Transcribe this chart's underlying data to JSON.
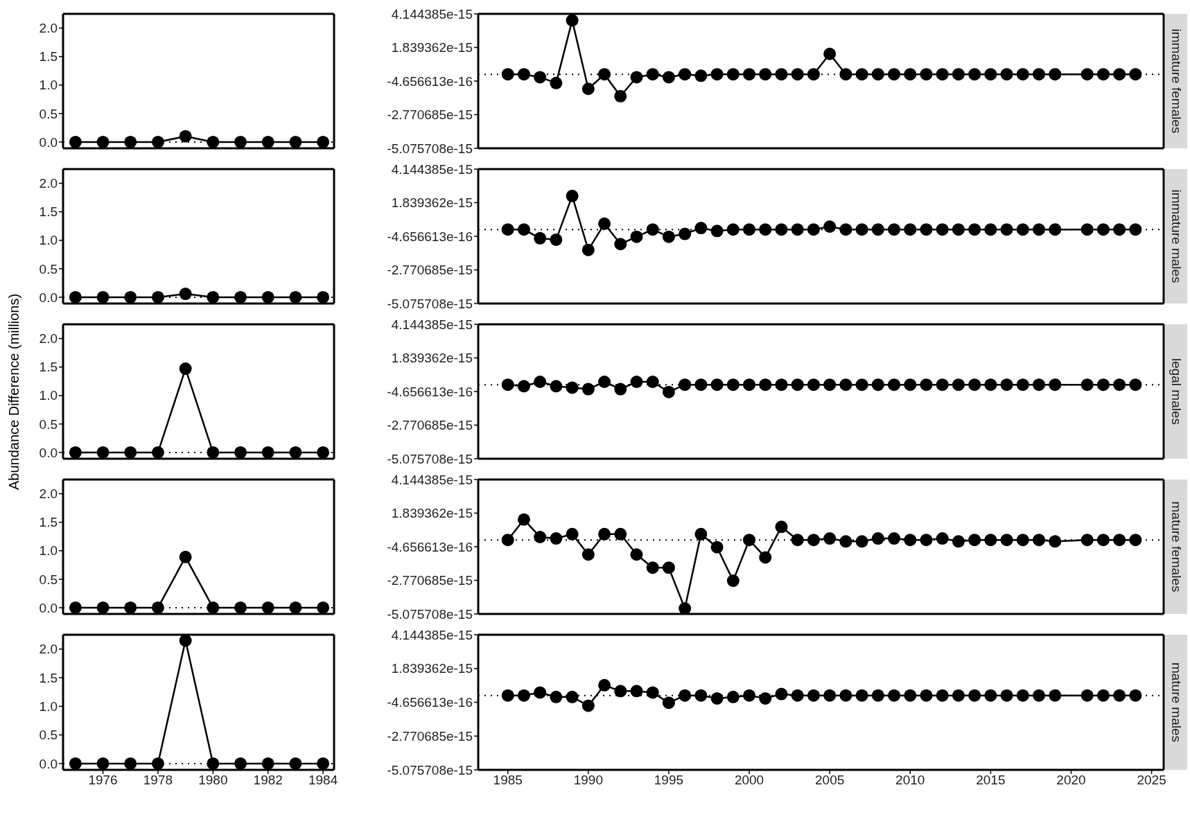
{
  "chart_data": [
    {
      "type": "line",
      "x": [
        1975,
        1976,
        1977,
        1978,
        1979,
        1980,
        1981,
        1982,
        1983,
        1984
      ],
      "values": [
        0,
        0,
        0,
        0,
        0.1,
        0,
        0,
        0,
        0,
        0
      ],
      "color": "#000000",
      "marker": "circle",
      "line_style": "solid",
      "xlim": [
        1974.55,
        1984.4
      ],
      "xticks": [
        1976,
        1978,
        1980,
        1982,
        1984
      ],
      "ylim": [
        -0.11,
        2.25
      ],
      "yticks": [
        {
          "value": 0,
          "label": "0.0"
        },
        {
          "value": 0.5,
          "label": "0.5"
        },
        {
          "value": 1,
          "label": "1.0"
        },
        {
          "value": 1.5,
          "label": "1.5"
        },
        {
          "value": 2,
          "label": "2.0"
        }
      ],
      "ref_lines": [
        {
          "axis": "y",
          "value": 0,
          "line_style": "dotted",
          "color": "#000000"
        }
      ],
      "tick_labels": "y"
    },
    {
      "type": "line",
      "title": "immature females",
      "x": [
        1985,
        1986,
        1987,
        1988,
        1989,
        1990,
        1991,
        1992,
        1993,
        1994,
        1995,
        1996,
        1997,
        1998,
        1999,
        2000,
        2001,
        2002,
        2003,
        2004,
        2005,
        2006,
        2007,
        2008,
        2009,
        2010,
        2011,
        2012,
        2013,
        2014,
        2015,
        2016,
        2017,
        2018,
        2019,
        2021,
        2022,
        2023,
        2024
      ],
      "values": [
        0,
        0,
        -2e-16,
        -6e-16,
        3.7e-15,
        -1e-15,
        0,
        -1.5e-15,
        -2e-16,
        0,
        -2e-16,
        0,
        -1e-16,
        0,
        0,
        0,
        0,
        0,
        0,
        0,
        1.4e-15,
        0,
        0,
        0,
        0,
        0,
        0,
        0,
        0,
        0,
        0,
        0,
        0,
        0,
        0,
        0,
        0,
        0,
        0
      ],
      "color": "#000000",
      "marker": "circle",
      "line_style": "solid",
      "xlim": [
        1983.16,
        2025.75
      ],
      "xticks": [
        1985,
        1990,
        1995,
        2000,
        2005,
        2010,
        2015,
        2020,
        2025
      ],
      "ylim": [
        -5.075708e-15,
        4.144385e-15
      ],
      "yticks": [
        {
          "value": -5.075708e-15,
          "label": "-5.075708e-15"
        },
        {
          "value": -2.770685e-15,
          "label": "-2.770685e-15"
        },
        {
          "value": -4.656613e-16,
          "label": "-4.656613e-16"
        },
        {
          "value": 1.839362e-15,
          "label": "1.839362e-15"
        },
        {
          "value": 4.144385e-15,
          "label": "4.144385e-15"
        }
      ],
      "ref_lines": [
        {
          "axis": "y",
          "value": 0,
          "line_style": "dotted",
          "color": "#000000"
        }
      ],
      "tick_labels": "y"
    },
    {
      "type": "line",
      "x": [
        1975,
        1976,
        1977,
        1978,
        1979,
        1980,
        1981,
        1982,
        1983,
        1984
      ],
      "values": [
        0,
        0,
        0,
        0,
        0.06,
        0,
        0,
        0,
        0,
        0
      ],
      "color": "#000000",
      "marker": "circle",
      "line_style": "solid",
      "xlim": [
        1974.55,
        1984.4
      ],
      "xticks": [
        1976,
        1978,
        1980,
        1982,
        1984
      ],
      "ylim": [
        -0.11,
        2.25
      ],
      "yticks": [
        {
          "value": 0,
          "label": "0.0"
        },
        {
          "value": 0.5,
          "label": "0.5"
        },
        {
          "value": 1,
          "label": "1.0"
        },
        {
          "value": 1.5,
          "label": "1.5"
        },
        {
          "value": 2,
          "label": "2.0"
        }
      ],
      "ref_lines": [
        {
          "axis": "y",
          "value": 0,
          "line_style": "dotted",
          "color": "#000000"
        }
      ],
      "tick_labels": "y"
    },
    {
      "type": "line",
      "title": "immature males",
      "x": [
        1985,
        1986,
        1987,
        1988,
        1989,
        1990,
        1991,
        1992,
        1993,
        1994,
        1995,
        1996,
        1997,
        1998,
        1999,
        2000,
        2001,
        2002,
        2003,
        2004,
        2005,
        2006,
        2007,
        2008,
        2009,
        2010,
        2011,
        2012,
        2013,
        2014,
        2015,
        2016,
        2017,
        2018,
        2019,
        2021,
        2022,
        2023,
        2024
      ],
      "values": [
        0,
        0,
        -6e-16,
        -7e-16,
        2.3e-15,
        -1.4e-15,
        4e-16,
        -1e-15,
        -5e-16,
        0,
        -5e-16,
        -3e-16,
        1e-16,
        -1e-16,
        0,
        0,
        0,
        0,
        0,
        0,
        2e-16,
        0,
        0,
        0,
        0,
        0,
        0,
        0,
        0,
        0,
        0,
        0,
        0,
        0,
        0,
        0,
        0,
        0,
        0
      ],
      "color": "#000000",
      "marker": "circle",
      "line_style": "solid",
      "xlim": [
        1983.16,
        2025.75
      ],
      "xticks": [
        1985,
        1990,
        1995,
        2000,
        2005,
        2010,
        2015,
        2020,
        2025
      ],
      "ylim": [
        -5.075708e-15,
        4.144385e-15
      ],
      "yticks": [
        {
          "value": -5.075708e-15,
          "label": "-5.075708e-15"
        },
        {
          "value": -2.770685e-15,
          "label": "-2.770685e-15"
        },
        {
          "value": -4.656613e-16,
          "label": "-4.656613e-16"
        },
        {
          "value": 1.839362e-15,
          "label": "1.839362e-15"
        },
        {
          "value": 4.144385e-15,
          "label": "4.144385e-15"
        }
      ],
      "ref_lines": [
        {
          "axis": "y",
          "value": 0,
          "line_style": "dotted",
          "color": "#000000"
        }
      ],
      "tick_labels": "y"
    },
    {
      "type": "line",
      "ylabel": "Abundance Difference (millions)",
      "x": [
        1975,
        1976,
        1977,
        1978,
        1979,
        1980,
        1981,
        1982,
        1983,
        1984
      ],
      "values": [
        0,
        0,
        0,
        0,
        1.47,
        0,
        0,
        0,
        0,
        0
      ],
      "color": "#000000",
      "marker": "circle",
      "line_style": "solid",
      "xlim": [
        1974.55,
        1984.4
      ],
      "xticks": [
        1976,
        1978,
        1980,
        1982,
        1984
      ],
      "ylim": [
        -0.11,
        2.25
      ],
      "yticks": [
        {
          "value": 0,
          "label": "0.0"
        },
        {
          "value": 0.5,
          "label": "0.5"
        },
        {
          "value": 1,
          "label": "1.0"
        },
        {
          "value": 1.5,
          "label": "1.5"
        },
        {
          "value": 2,
          "label": "2.0"
        }
      ],
      "ref_lines": [
        {
          "axis": "y",
          "value": 0,
          "line_style": "dotted",
          "color": "#000000"
        }
      ],
      "tick_labels": "y"
    },
    {
      "type": "line",
      "title": "legal males",
      "x": [
        1985,
        1986,
        1987,
        1988,
        1989,
        1990,
        1991,
        1992,
        1993,
        1994,
        1995,
        1996,
        1997,
        1998,
        1999,
        2000,
        2001,
        2002,
        2003,
        2004,
        2005,
        2006,
        2007,
        2008,
        2009,
        2010,
        2011,
        2012,
        2013,
        2014,
        2015,
        2016,
        2017,
        2018,
        2019,
        2021,
        2022,
        2023,
        2024
      ],
      "values": [
        0,
        -1e-16,
        2e-16,
        -1e-16,
        -2e-16,
        -3e-16,
        2e-16,
        -3e-16,
        2e-16,
        2e-16,
        -5e-16,
        0,
        0,
        0,
        0,
        0,
        0,
        0,
        0,
        0,
        0,
        0,
        0,
        0,
        0,
        0,
        0,
        0,
        0,
        0,
        0,
        0,
        0,
        0,
        0,
        0,
        0,
        0,
        0
      ],
      "color": "#000000",
      "marker": "circle",
      "line_style": "solid",
      "xlim": [
        1983.16,
        2025.75
      ],
      "xticks": [
        1985,
        1990,
        1995,
        2000,
        2005,
        2010,
        2015,
        2020,
        2025
      ],
      "ylim": [
        -5.075708e-15,
        4.144385e-15
      ],
      "yticks": [
        {
          "value": -5.075708e-15,
          "label": "-5.075708e-15"
        },
        {
          "value": -2.770685e-15,
          "label": "-2.770685e-15"
        },
        {
          "value": -4.656613e-16,
          "label": "-4.656613e-16"
        },
        {
          "value": 1.839362e-15,
          "label": "1.839362e-15"
        },
        {
          "value": 4.144385e-15,
          "label": "4.144385e-15"
        }
      ],
      "ref_lines": [
        {
          "axis": "y",
          "value": 0,
          "line_style": "dotted",
          "color": "#000000"
        }
      ],
      "tick_labels": "y"
    },
    {
      "type": "line",
      "x": [
        1975,
        1976,
        1977,
        1978,
        1979,
        1980,
        1981,
        1982,
        1983,
        1984
      ],
      "values": [
        0,
        0,
        0,
        0,
        0.89,
        0,
        0,
        0,
        0,
        0
      ],
      "color": "#000000",
      "marker": "circle",
      "line_style": "solid",
      "xlim": [
        1974.55,
        1984.4
      ],
      "xticks": [
        1976,
        1978,
        1980,
        1982,
        1984
      ],
      "ylim": [
        -0.11,
        2.25
      ],
      "yticks": [
        {
          "value": 0,
          "label": "0.0"
        },
        {
          "value": 0.5,
          "label": "0.5"
        },
        {
          "value": 1,
          "label": "1.0"
        },
        {
          "value": 1.5,
          "label": "1.5"
        },
        {
          "value": 2,
          "label": "2.0"
        }
      ],
      "ref_lines": [
        {
          "axis": "y",
          "value": 0,
          "line_style": "dotted",
          "color": "#000000"
        }
      ],
      "tick_labels": "y"
    },
    {
      "type": "line",
      "title": "mature females",
      "x": [
        1985,
        1986,
        1987,
        1988,
        1989,
        1990,
        1991,
        1992,
        1993,
        1994,
        1995,
        1996,
        1997,
        1998,
        1999,
        2000,
        2001,
        2002,
        2003,
        2004,
        2005,
        2006,
        2007,
        2008,
        2009,
        2010,
        2011,
        2012,
        2013,
        2014,
        2015,
        2016,
        2017,
        2018,
        2019,
        2021,
        2022,
        2023,
        2024
      ],
      "values": [
        0,
        1.4e-15,
        2e-16,
        1e-16,
        4e-16,
        -1e-15,
        4e-16,
        4e-16,
        -1e-15,
        -1.9e-15,
        -1.9e-15,
        -4.7e-15,
        4e-16,
        -5e-16,
        -2.8e-15,
        0,
        -1.2e-15,
        9e-16,
        0,
        0,
        1e-16,
        -1e-16,
        -1e-16,
        1e-16,
        1e-16,
        0,
        0,
        1e-16,
        -1e-16,
        0,
        0,
        0,
        0,
        0,
        -1e-16,
        0,
        0,
        0,
        0
      ],
      "color": "#000000",
      "marker": "circle",
      "line_style": "solid",
      "xlim": [
        1983.16,
        2025.75
      ],
      "xticks": [
        1985,
        1990,
        1995,
        2000,
        2005,
        2010,
        2015,
        2020,
        2025
      ],
      "ylim": [
        -5.075708e-15,
        4.144385e-15
      ],
      "yticks": [
        {
          "value": -5.075708e-15,
          "label": "-5.075708e-15"
        },
        {
          "value": -2.770685e-15,
          "label": "-2.770685e-15"
        },
        {
          "value": -4.656613e-16,
          "label": "-4.656613e-16"
        },
        {
          "value": 1.839362e-15,
          "label": "1.839362e-15"
        },
        {
          "value": 4.144385e-15,
          "label": "4.144385e-15"
        }
      ],
      "ref_lines": [
        {
          "axis": "y",
          "value": 0,
          "line_style": "dotted",
          "color": "#000000"
        }
      ],
      "tick_labels": "y"
    },
    {
      "type": "line",
      "x": [
        1975,
        1976,
        1977,
        1978,
        1979,
        1980,
        1981,
        1982,
        1983,
        1984
      ],
      "values": [
        0,
        0,
        0,
        0,
        2.15,
        0,
        0,
        0,
        0,
        0
      ],
      "color": "#000000",
      "marker": "circle",
      "line_style": "solid",
      "xlim": [
        1974.55,
        1984.4
      ],
      "xticks": [
        1976,
        1978,
        1980,
        1982,
        1984
      ],
      "ylim": [
        -0.11,
        2.25
      ],
      "yticks": [
        {
          "value": 0,
          "label": "0.0"
        },
        {
          "value": 0.5,
          "label": "0.5"
        },
        {
          "value": 1,
          "label": "1.0"
        },
        {
          "value": 1.5,
          "label": "1.5"
        },
        {
          "value": 2,
          "label": "2.0"
        }
      ],
      "ref_lines": [
        {
          "axis": "y",
          "value": 0,
          "line_style": "dotted",
          "color": "#000000"
        }
      ]
    },
    {
      "type": "line",
      "title": "mature males",
      "x": [
        1985,
        1986,
        1987,
        1988,
        1989,
        1990,
        1991,
        1992,
        1993,
        1994,
        1995,
        1996,
        1997,
        1998,
        1999,
        2000,
        2001,
        2002,
        2003,
        2004,
        2005,
        2006,
        2007,
        2008,
        2009,
        2010,
        2011,
        2012,
        2013,
        2014,
        2015,
        2016,
        2017,
        2018,
        2019,
        2021,
        2022,
        2023,
        2024
      ],
      "values": [
        0,
        0,
        2e-16,
        -1e-16,
        -1e-16,
        -7e-16,
        7e-16,
        3e-16,
        3e-16,
        2e-16,
        -5e-16,
        0,
        0,
        -2e-16,
        -1e-16,
        0,
        -2e-16,
        1e-16,
        0,
        0,
        0,
        0,
        0,
        0,
        0,
        0,
        0,
        0,
        0,
        0,
        0,
        0,
        0,
        0,
        0,
        0,
        0,
        0,
        0
      ],
      "color": "#000000",
      "marker": "circle",
      "line_style": "solid",
      "xlim": [
        1983.16,
        2025.75
      ],
      "xticks": [
        1985,
        1990,
        1995,
        2000,
        2005,
        2010,
        2015,
        2020,
        2025
      ],
      "ylim": [
        -5.075708e-15,
        4.144385e-15
      ],
      "yticks": [
        {
          "value": -5.075708e-15,
          "label": "-5.075708e-15"
        },
        {
          "value": -2.770685e-15,
          "label": "-2.770685e-15"
        },
        {
          "value": -4.656613e-16,
          "label": "-4.656613e-16"
        },
        {
          "value": 1.839362e-15,
          "label": "1.839362e-15"
        },
        {
          "value": 4.144385e-15,
          "label": "4.144385e-15"
        }
      ],
      "ref_lines": [
        {
          "axis": "y",
          "value": 0,
          "line_style": "dotted",
          "color": "#000000"
        }
      ]
    }
  ]
}
